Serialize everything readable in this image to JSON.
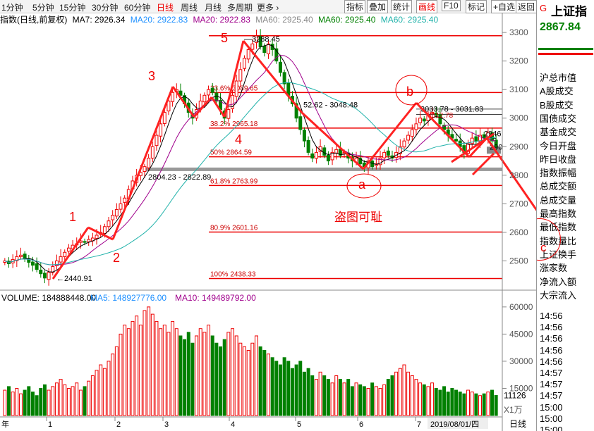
{
  "toolbar": {
    "periods": [
      "1分钟",
      "5分钟",
      "15分钟",
      "30分钟",
      "60分钟",
      "日线",
      "周线",
      "月线",
      "多周期",
      "更多 ›"
    ],
    "active_period": "日线",
    "tools": [
      "指标",
      "叠加",
      "统计",
      "画线",
      "F10",
      "标记",
      "+自选",
      "返回"
    ]
  },
  "infobar": {
    "title": "指数(日线,前复权)",
    "ma7": "MA7: 2926.34",
    "ma20": "MA20: 2922.83",
    "ma20b": "MA20: 2922.83",
    "ma60a": "MA60: 2925.40",
    "ma60b": "MA60: 2925.40",
    "ma60c": "MA60: 2925.40"
  },
  "side": {
    "code": "G",
    "name": "上证指",
    "price": "2867.84",
    "items": [
      "沪总市值",
      "A股成交",
      "B股成交",
      "国债成交",
      "基金成交",
      "今日开盘",
      "昨日收盘",
      "指数振幅",
      "总成交额",
      "总成交量",
      "最高指数",
      "最低指数",
      "指数量比",
      "上证换手",
      "涨家数",
      "净流入额",
      "大宗流入"
    ],
    "times": [
      "14:56",
      "14:56",
      "14:56",
      "14:56",
      "14:56",
      "14:57",
      "14:57",
      "14:57",
      "15:00",
      "15:00",
      "15:00"
    ],
    "c_label": "c"
  },
  "chart_data": {
    "type": "candlestick",
    "price_axis": {
      "ticks": [
        3300,
        3200,
        3100,
        3000,
        2900,
        2800,
        2700,
        2600,
        2500
      ],
      "range": [
        2400,
        3320
      ]
    },
    "volume_axis": {
      "ticks": [
        "60000",
        "45000",
        "30000",
        "15000"
      ],
      "range": [
        0,
        65000
      ],
      "unit": "X1万",
      "current": "11126"
    },
    "months": [
      "1",
      "2",
      "3",
      "4",
      "5",
      "6",
      "7"
    ],
    "year_label": "年",
    "date_label": "2019/08/01/四",
    "period_label": "日线",
    "fib_levels": [
      {
        "label": "23.6% 3089.65",
        "value": 3089.65
      },
      {
        "label": "38.2% 2965.18",
        "value": 2965.18
      },
      {
        "label": "50% 2864.59",
        "value": 2864.59
      },
      {
        "label": "61.8% 2763.99",
        "value": 2763.99
      },
      {
        "label": "80.9% 2601.16",
        "value": 2601.16
      },
      {
        "label": "100% 2438.33",
        "value": 2438.33
      }
    ],
    "top_line": 3288.45,
    "extra_hlines": [
      3031.83,
      3012.78
    ],
    "annotations": {
      "high": "3288.45",
      "low": "←2440.91",
      "range1": "2804.23 - 2822.89",
      "range2": "52.62 - 3048.48",
      "range3": "3033.78 - 3031.83",
      "mid": "3012.78",
      "r1": "2946",
      "r2": "290",
      "watermark": "盗图可耻"
    },
    "wave_labels": [
      "1",
      "2",
      "3",
      "4",
      "5",
      "a",
      "b"
    ],
    "volume_title": "VOLUME: 184888448.00",
    "vol_ma5": "MA5: 148927776.00",
    "vol_ma10": "MA10: 149489792.00",
    "close_series": [
      2500,
      2490,
      2505,
      2515,
      2520,
      2510,
      2495,
      2485,
      2470,
      2455,
      2440,
      2460,
      2480,
      2500,
      2515,
      2530,
      2545,
      2555,
      2560,
      2570,
      2565,
      2575,
      2580,
      2590,
      2600,
      2620,
      2640,
      2660,
      2680,
      2700,
      2720,
      2750,
      2780,
      2800,
      2810,
      2830,
      2860,
      2900,
      2940,
      2980,
      3020,
      3060,
      3090,
      3100,
      3080,
      3050,
      3020,
      3000,
      3030,
      3060,
      3080,
      3100,
      3090,
      3060,
      3030,
      3000,
      3030,
      3080,
      3130,
      3170,
      3210,
      3240,
      3260,
      3288,
      3250,
      3230,
      3260,
      3240,
      3200,
      3160,
      3120,
      3080,
      3050,
      3000,
      2960,
      2920,
      2880,
      2860,
      2880,
      2900,
      2870,
      2850,
      2880,
      2890,
      2870,
      2880,
      2860,
      2850,
      2860,
      2840,
      2830,
      2850,
      2830,
      2840,
      2860,
      2880,
      2870,
      2860,
      2880,
      2900,
      2920,
      2940,
      2960,
      2980,
      3000,
      2990,
      3010,
      3020,
      3010,
      2980,
      2960,
      2940,
      2930,
      2920,
      2900,
      2880,
      2910,
      2930,
      2920,
      2940,
      2930,
      2950,
      2920,
      2900
    ],
    "volume_series": [
      14000,
      16000,
      13000,
      15000,
      12000,
      14000,
      16000,
      13000,
      11000,
      15000,
      17000,
      14000,
      16000,
      18000,
      20000,
      17000,
      15000,
      16000,
      18000,
      14000,
      16000,
      19000,
      22000,
      25000,
      28000,
      26000,
      30000,
      34000,
      38000,
      45000,
      50000,
      48000,
      52000,
      55000,
      50000,
      58000,
      60000,
      56000,
      52000,
      48000,
      50000,
      46000,
      52000,
      48000,
      44000,
      42000,
      46000,
      40000,
      44000,
      48000,
      46000,
      50000,
      44000,
      40000,
      38000,
      42000,
      46000,
      48000,
      44000,
      40000,
      38000,
      36000,
      40000,
      44000,
      38000,
      36000,
      34000,
      32000,
      30000,
      28000,
      32000,
      30000,
      26000,
      28000,
      30000,
      24000,
      26000,
      22000,
      20000,
      24000,
      22000,
      20000,
      18000,
      22000,
      20000,
      18000,
      20000,
      16000,
      18000,
      17000,
      16000,
      15000,
      18000,
      16000,
      15000,
      17000,
      20000,
      22000,
      24000,
      26000,
      28000,
      24000,
      22000,
      20000,
      18000,
      17000,
      16000,
      18000,
      15000,
      14000,
      16000,
      13000,
      15000,
      14000,
      13000,
      12000,
      14000,
      13000,
      12000,
      11000,
      12000,
      13000,
      14000,
      11126
    ]
  }
}
